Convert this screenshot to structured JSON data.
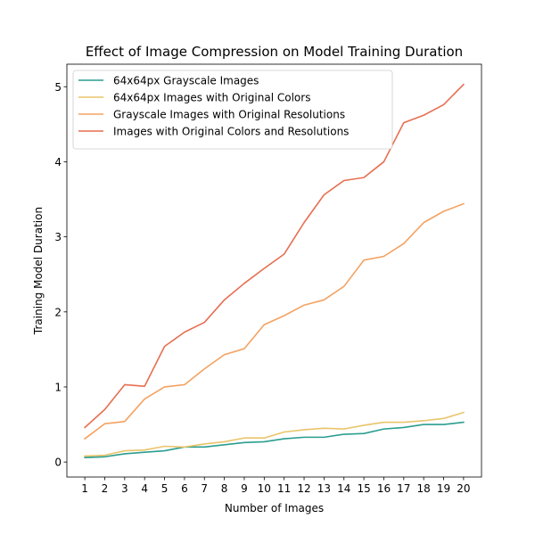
{
  "chart_data": {
    "type": "line",
    "title": "Effect of Image Compression on Model Training Duration",
    "xlabel": "Number of Images",
    "ylabel": "Training Model Duration",
    "x": [
      1,
      2,
      3,
      4,
      5,
      6,
      7,
      8,
      9,
      10,
      11,
      12,
      13,
      14,
      15,
      16,
      17,
      18,
      19,
      20
    ],
    "xlim": [
      0.1,
      20.9
    ],
    "ylim": [
      -0.2,
      5.3
    ],
    "yticks": [
      0,
      1,
      2,
      3,
      4,
      5
    ],
    "grid": false,
    "legend_position": "upper-left",
    "series": [
      {
        "name": "64x64px Grayscale Images",
        "color": "#2a9d8f",
        "values": [
          0.06,
          0.07,
          0.11,
          0.13,
          0.15,
          0.2,
          0.2,
          0.23,
          0.26,
          0.27,
          0.31,
          0.33,
          0.33,
          0.37,
          0.38,
          0.44,
          0.46,
          0.5,
          0.5,
          0.53
        ]
      },
      {
        "name": "64x64px Images with Original Colors",
        "color": "#e9c46a",
        "values": [
          0.08,
          0.09,
          0.15,
          0.16,
          0.21,
          0.2,
          0.24,
          0.27,
          0.32,
          0.32,
          0.4,
          0.43,
          0.45,
          0.44,
          0.49,
          0.53,
          0.53,
          0.55,
          0.58,
          0.66
        ]
      },
      {
        "name": "Grayscale Images with Original Resolutions",
        "color": "#f4a261",
        "values": [
          0.31,
          0.51,
          0.54,
          0.84,
          1.0,
          1.03,
          1.24,
          1.43,
          1.51,
          1.83,
          1.95,
          2.09,
          2.16,
          2.34,
          2.69,
          2.74,
          2.91,
          3.19,
          3.34,
          3.44
        ]
      },
      {
        "name": "Images with Original Colors and Resolutions",
        "color": "#e76f51",
        "values": [
          0.46,
          0.7,
          1.03,
          1.01,
          1.54,
          1.73,
          1.86,
          2.16,
          2.38,
          2.58,
          2.77,
          3.19,
          3.56,
          3.75,
          3.79,
          4.0,
          4.52,
          4.62,
          4.76,
          5.03
        ]
      }
    ]
  }
}
